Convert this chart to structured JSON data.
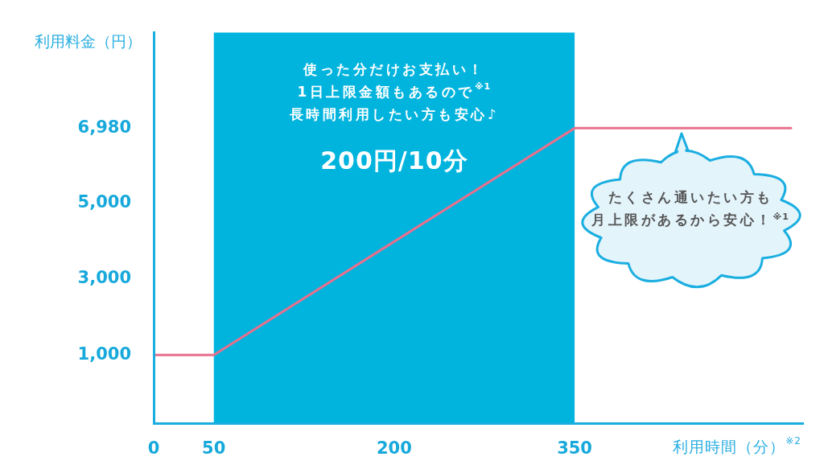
{
  "chart_data": {
    "type": "line",
    "xlabel": "利用時間（分）$^{※2}$",
    "ylabel": "利用料金（円）",
    "x": [
      0,
      50,
      350,
      530
    ],
    "values": [
      1000,
      1000,
      6980,
      6980
    ],
    "color": "#e8708d",
    "xlim": [
      0,
      540
    ],
    "xticks": [
      0,
      50,
      200,
      350
    ],
    "ylim": [
      -800,
      9500
    ],
    "yticks": [
      {
        "value": 1000,
        "label": "1,000"
      },
      {
        "value": 3000,
        "label": "3,000"
      },
      {
        "value": 5000,
        "label": "5,000"
      },
      {
        "value": 6980,
        "label": "6,980"
      }
    ],
    "bands": [
      {
        "axis": "x",
        "from": 50,
        "to": 350,
        "color": "#00b4de",
        "label": "使った分だけお支払い！\n1日上限金額もあるので$^{※1}$\n長時間利用したい方も安心♪"
      }
    ],
    "annotations": [
      "200円/10分",
      "たくさん通いたい方も月上限があるから安心！$^{※1}$"
    ]
  }
}
